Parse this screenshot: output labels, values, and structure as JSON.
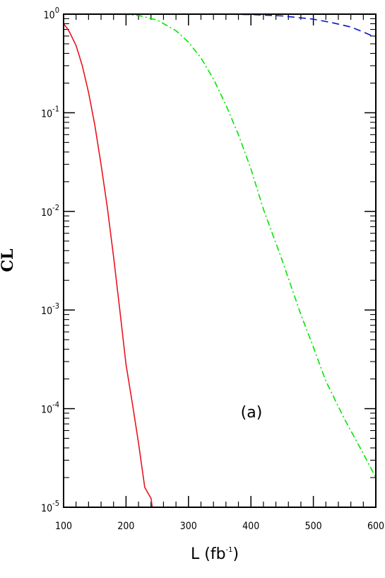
{
  "chart_data": {
    "type": "line",
    "xlabel": "L (fb",
    "xlabel_exp": "-1",
    "xlabel_close": ")",
    "ylabel": "CL",
    "annotation": "(a)",
    "xlim": [
      100,
      600
    ],
    "ylim": [
      1e-05,
      1
    ],
    "yscale": "log",
    "x_ticks": [
      100,
      200,
      300,
      400,
      500,
      600
    ],
    "x_tick_labels": [
      "100",
      "200",
      "300",
      "400",
      "500",
      "600"
    ],
    "y_ticks": [
      1,
      0.1,
      0.01,
      0.001,
      0.0001,
      1e-05
    ],
    "y_tick_labels": [
      {
        "base": "10",
        "exp": "0"
      },
      {
        "base": "10",
        "exp": "-1"
      },
      {
        "base": "10",
        "exp": "-2"
      },
      {
        "base": "10",
        "exp": "-3"
      },
      {
        "base": "10",
        "exp": "-4"
      },
      {
        "base": "10",
        "exp": "-5"
      }
    ],
    "grid": false,
    "legend": "none",
    "series": [
      {
        "color": "#e8141e",
        "style": "solid",
        "x": [
          100,
          105,
          110,
          120,
          130,
          140,
          150,
          160,
          170,
          180,
          190,
          200,
          210,
          220,
          230,
          240,
          242
        ],
        "y": [
          0.8,
          0.73,
          0.65,
          0.48,
          0.3,
          0.16,
          0.075,
          0.03,
          0.011,
          0.0035,
          0.001,
          0.00028,
          0.000115,
          4.47e-05,
          1.59e-05,
          1.23e-05,
          1e-05
        ]
      },
      {
        "color": "#00e600",
        "style": "dashdot",
        "x": [
          195,
          220,
          250,
          280,
          300,
          320,
          340,
          360,
          380,
          400,
          420,
          450,
          480,
          500,
          520,
          550,
          580,
          600
        ],
        "y": [
          1.0,
          0.97,
          0.87,
          0.68,
          0.52,
          0.36,
          0.22,
          0.12,
          0.06,
          0.027,
          0.0105,
          0.0032,
          0.0009,
          0.00042,
          0.00019,
          7.8e-05,
          3.5e-05,
          2e-05
        ]
      },
      {
        "color": "#0a14c8",
        "style": "dashed",
        "x": [
          350,
          400,
          450,
          500,
          530,
          560,
          580,
          600
        ],
        "y": [
          1.0,
          0.99,
          0.96,
          0.89,
          0.82,
          0.74,
          0.66,
          0.58
        ]
      }
    ]
  }
}
